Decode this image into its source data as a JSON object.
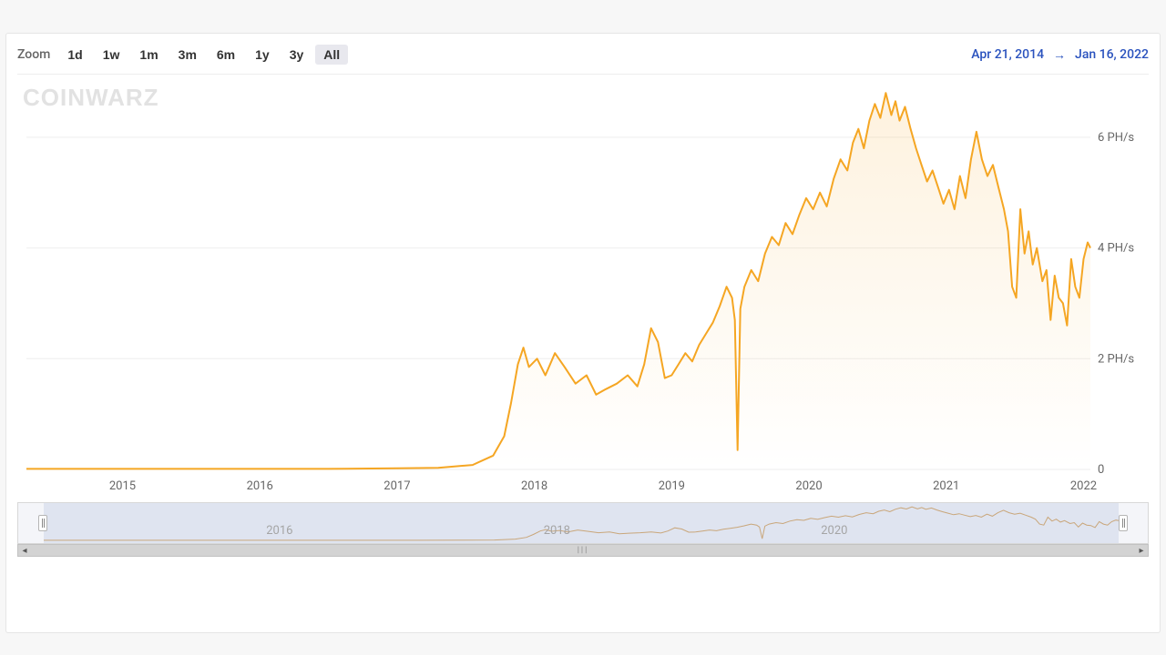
{
  "zoom": {
    "label": "Zoom",
    "buttons": [
      "1d",
      "1w",
      "1m",
      "3m",
      "6m",
      "1y",
      "3y",
      "All"
    ],
    "active": "All"
  },
  "date_range": {
    "from": "Apr 21, 2014",
    "to": "Jan 16, 2022",
    "arrow": "→"
  },
  "watermark": "CoinWarz",
  "chart": {
    "type": "area",
    "line_color": "#f5a623",
    "line_width": 2,
    "area_top_color": "#f5a62326",
    "area_bottom_color": "#f5a62300",
    "background": "#ffffff",
    "grid_color": "#eeeeee",
    "tick_color": "#666666",
    "tick_fontsize": 13,
    "y": {
      "unit": "PH/s",
      "min": 0,
      "max": 7,
      "ticks": [
        0,
        2,
        4,
        6
      ],
      "labels": [
        "0",
        "2 PH/s",
        "4 PH/s",
        "6 PH/s"
      ]
    },
    "x": {
      "min": 2014.3,
      "max": 2022.05,
      "ticks": [
        2015,
        2016,
        2017,
        2018,
        2019,
        2020,
        2021,
        2022
      ],
      "labels": [
        "2015",
        "2016",
        "2017",
        "2018",
        "2019",
        "2020",
        "2021",
        "2022"
      ]
    },
    "series": [
      [
        2014.3,
        0.01
      ],
      [
        2014.6,
        0.01
      ],
      [
        2015.0,
        0.01
      ],
      [
        2015.5,
        0.01
      ],
      [
        2016.0,
        0.01
      ],
      [
        2016.5,
        0.01
      ],
      [
        2017.0,
        0.02
      ],
      [
        2017.3,
        0.03
      ],
      [
        2017.55,
        0.08
      ],
      [
        2017.7,
        0.25
      ],
      [
        2017.78,
        0.6
      ],
      [
        2017.83,
        1.2
      ],
      [
        2017.88,
        1.9
      ],
      [
        2017.92,
        2.2
      ],
      [
        2017.96,
        1.85
      ],
      [
        2018.02,
        2.0
      ],
      [
        2018.08,
        1.7
      ],
      [
        2018.15,
        2.1
      ],
      [
        2018.22,
        1.85
      ],
      [
        2018.3,
        1.55
      ],
      [
        2018.38,
        1.7
      ],
      [
        2018.45,
        1.35
      ],
      [
        2018.52,
        1.45
      ],
      [
        2018.6,
        1.55
      ],
      [
        2018.68,
        1.7
      ],
      [
        2018.75,
        1.5
      ],
      [
        2018.8,
        1.9
      ],
      [
        2018.85,
        2.55
      ],
      [
        2018.9,
        2.3
      ],
      [
        2018.95,
        1.65
      ],
      [
        2019.0,
        1.7
      ],
      [
        2019.05,
        1.9
      ],
      [
        2019.1,
        2.1
      ],
      [
        2019.15,
        1.95
      ],
      [
        2019.2,
        2.25
      ],
      [
        2019.25,
        2.45
      ],
      [
        2019.3,
        2.65
      ],
      [
        2019.35,
        2.95
      ],
      [
        2019.4,
        3.3
      ],
      [
        2019.44,
        3.1
      ],
      [
        2019.46,
        2.7
      ],
      [
        2019.48,
        0.35
      ],
      [
        2019.5,
        2.9
      ],
      [
        2019.53,
        3.3
      ],
      [
        2019.58,
        3.6
      ],
      [
        2019.63,
        3.4
      ],
      [
        2019.68,
        3.9
      ],
      [
        2019.73,
        4.2
      ],
      [
        2019.78,
        4.05
      ],
      [
        2019.83,
        4.45
      ],
      [
        2019.88,
        4.25
      ],
      [
        2019.93,
        4.6
      ],
      [
        2019.98,
        4.9
      ],
      [
        2020.03,
        4.7
      ],
      [
        2020.08,
        5.0
      ],
      [
        2020.13,
        4.75
      ],
      [
        2020.18,
        5.25
      ],
      [
        2020.23,
        5.6
      ],
      [
        2020.28,
        5.4
      ],
      [
        2020.32,
        5.9
      ],
      [
        2020.36,
        6.15
      ],
      [
        2020.4,
        5.8
      ],
      [
        2020.44,
        6.3
      ],
      [
        2020.48,
        6.6
      ],
      [
        2020.52,
        6.35
      ],
      [
        2020.56,
        6.8
      ],
      [
        2020.6,
        6.4
      ],
      [
        2020.63,
        6.65
      ],
      [
        2020.66,
        6.3
      ],
      [
        2020.7,
        6.55
      ],
      [
        2020.74,
        6.15
      ],
      [
        2020.78,
        5.8
      ],
      [
        2020.82,
        5.5
      ],
      [
        2020.86,
        5.2
      ],
      [
        2020.9,
        5.4
      ],
      [
        2020.94,
        5.1
      ],
      [
        2020.98,
        4.8
      ],
      [
        2021.02,
        5.05
      ],
      [
        2021.06,
        4.7
      ],
      [
        2021.1,
        5.3
      ],
      [
        2021.14,
        4.9
      ],
      [
        2021.18,
        5.6
      ],
      [
        2021.22,
        6.1
      ],
      [
        2021.26,
        5.6
      ],
      [
        2021.3,
        5.3
      ],
      [
        2021.34,
        5.5
      ],
      [
        2021.38,
        5.1
      ],
      [
        2021.42,
        4.7
      ],
      [
        2021.45,
        4.3
      ],
      [
        2021.48,
        3.3
      ],
      [
        2021.51,
        3.1
      ],
      [
        2021.54,
        4.7
      ],
      [
        2021.57,
        3.9
      ],
      [
        2021.6,
        4.3
      ],
      [
        2021.63,
        3.7
      ],
      [
        2021.66,
        4.0
      ],
      [
        2021.7,
        3.4
      ],
      [
        2021.73,
        3.6
      ],
      [
        2021.76,
        2.7
      ],
      [
        2021.79,
        3.5
      ],
      [
        2021.82,
        3.1
      ],
      [
        2021.85,
        3.0
      ],
      [
        2021.88,
        2.6
      ],
      [
        2021.91,
        3.8
      ],
      [
        2021.94,
        3.3
      ],
      [
        2021.97,
        3.1
      ],
      [
        2022.0,
        3.8
      ],
      [
        2022.03,
        4.1
      ],
      [
        2022.05,
        4.0
      ]
    ]
  },
  "navigator": {
    "background": "#f4f5f9",
    "mask_color": "#b7c4de55",
    "line_color": "#c9a67a",
    "ticks": [
      2016,
      2018,
      2020
    ],
    "labels": [
      "2016",
      "2018",
      "2020"
    ],
    "handles": true
  }
}
